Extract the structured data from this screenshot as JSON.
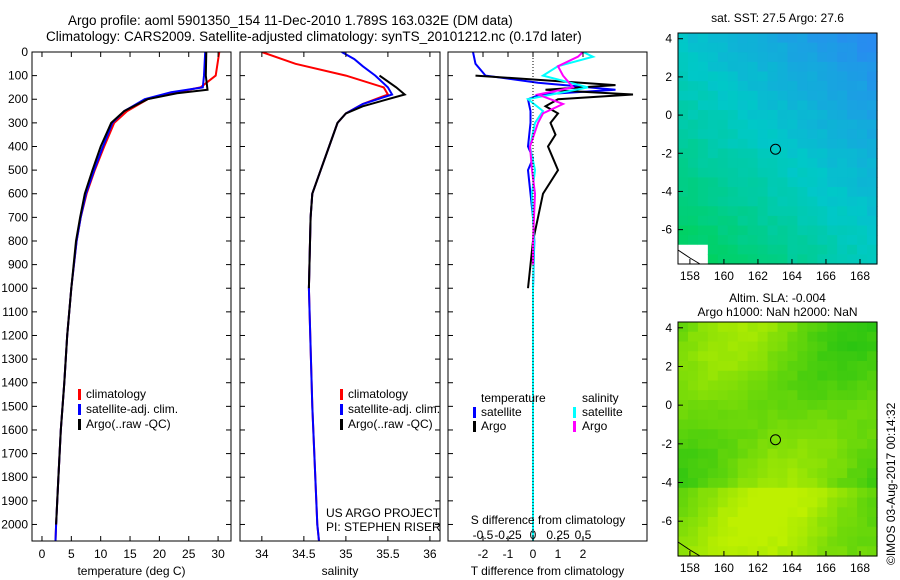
{
  "title_line1": "Argo profile: aoml 5901350_154 11-Dec-2010 1.789S 163.032E (DM data)",
  "title_line2": "Climatology: CARS2009. Satellite-adjusted climatology: synTS_20101212.nc (0.17d later)",
  "credit": "©IMOS 03-Aug-2017 00:14:32",
  "colors": {
    "climatology": "#ff0000",
    "satellite": "#0000ff",
    "argo": "#000000",
    "sal_satellite": "#00ffff",
    "sal_argo": "#ff00ff"
  },
  "chart_data": [
    {
      "type": "line",
      "name": "temperature-profile",
      "xlabel": "temperature (deg C)",
      "ylabel": "",
      "xlim": [
        -1.7,
        32.2
      ],
      "ylim": [
        0,
        2070
      ],
      "y_inverted": true,
      "xticks": [
        0,
        5,
        10,
        15,
        20,
        25,
        30
      ],
      "yticks": [
        0,
        100,
        200,
        300,
        400,
        500,
        600,
        700,
        800,
        900,
        1000,
        1100,
        1200,
        1300,
        1400,
        1500,
        1600,
        1700,
        1800,
        1900,
        2000
      ],
      "legend": [
        "climatology",
        "satellite-adj. clim.",
        "Argo(..raw -QC)"
      ],
      "series": [
        {
          "name": "climatology",
          "color": "#ff0000",
          "depth": [
            0,
            100,
            150,
            180,
            200,
            250,
            300,
            400,
            500,
            600,
            700,
            800,
            1000,
            1200,
            1400,
            1600,
            1800,
            2000,
            2070
          ],
          "values": [
            30.2,
            29.6,
            27,
            21,
            18,
            14.5,
            12.3,
            10.6,
            9,
            7.6,
            6.6,
            5.9,
            5,
            4.3,
            3.8,
            3.2,
            2.8,
            2.4,
            2.3
          ]
        },
        {
          "name": "satellite-adj. clim.",
          "color": "#0000ff",
          "depth": [
            0,
            100,
            150,
            170,
            200,
            250,
            300,
            400,
            500,
            600,
            700,
            800,
            1000,
            1200,
            1400,
            1600,
            1800,
            2000,
            2070
          ],
          "values": [
            27.8,
            27.6,
            27.4,
            22,
            17.5,
            14,
            12,
            10.4,
            8.9,
            7.5,
            6.6,
            5.9,
            5,
            4.3,
            3.8,
            3.2,
            2.8,
            2.4,
            2.3
          ]
        },
        {
          "name": "Argo(..raw -QC)",
          "color": "#000000",
          "depth": [
            0,
            100,
            160,
            175,
            200,
            250,
            300,
            400,
            500,
            600,
            700,
            800,
            1000,
            1200,
            1400,
            1600,
            1800,
            2000
          ],
          "values": [
            28,
            27.9,
            28.2,
            23,
            18,
            14,
            11.8,
            10,
            8.6,
            7.3,
            6.5,
            5.8,
            5,
            4.3,
            3.8,
            3.2,
            2.8,
            2.4
          ]
        }
      ]
    },
    {
      "type": "line",
      "name": "salinity-profile",
      "xlabel": "salinity",
      "xlim": [
        33.74,
        36.12
      ],
      "ylim": [
        0,
        2070
      ],
      "y_inverted": true,
      "xticks": [
        34,
        34.5,
        35,
        35.5,
        36
      ],
      "legend": [
        "climatology",
        "satellite-adj. clim.",
        "Argo(..raw -QC)"
      ],
      "annotation": [
        "US ARGO PROJECT",
        "PI: STEPHEN RISER"
      ],
      "series": [
        {
          "name": "climatology",
          "color": "#ff0000",
          "depth": [
            0,
            50,
            100,
            150,
            180,
            220,
            260,
            300,
            400,
            500,
            600,
            700,
            1000,
            1500,
            2000,
            2070
          ],
          "values": [
            34.0,
            34.4,
            35.0,
            35.45,
            35.5,
            35.2,
            35.0,
            34.9,
            34.8,
            34.7,
            34.6,
            34.58,
            34.56,
            34.6,
            34.66,
            34.68
          ]
        },
        {
          "name": "satellite-adj. clim.",
          "color": "#0000ff",
          "depth": [
            0,
            30,
            60,
            100,
            150,
            180,
            220,
            260,
            300,
            400,
            500,
            600,
            700,
            1000,
            1500,
            2000,
            2070
          ],
          "values": [
            34.95,
            35.1,
            35.2,
            35.35,
            35.5,
            35.55,
            35.2,
            35.0,
            34.9,
            34.8,
            34.7,
            34.6,
            34.58,
            34.56,
            34.6,
            34.66,
            34.68
          ]
        },
        {
          "name": "Argo(..raw -QC)",
          "color": "#000000",
          "depth": [
            100,
            150,
            180,
            200,
            230,
            260,
            300,
            400,
            500,
            600,
            700,
            1000
          ],
          "values": [
            35.4,
            35.6,
            35.7,
            35.5,
            35.2,
            35.0,
            34.9,
            34.8,
            34.7,
            34.6,
            34.58,
            34.56
          ]
        }
      ]
    },
    {
      "type": "line",
      "name": "difference-profile",
      "xlabel": "T difference from climatology",
      "x2label": "S difference from climatology",
      "xlim": [
        -3.4,
        4.56
      ],
      "xticks": [
        -2,
        -1,
        0,
        1,
        2
      ],
      "x2ticks": [
        -0.5,
        -0.25,
        0,
        0.25,
        0.5
      ],
      "ylim": [
        0,
        2070
      ],
      "y_inverted": true,
      "legend": {
        "temperature": [
          "satellite",
          "Argo"
        ],
        "salinity": [
          "satellite",
          "Argo"
        ],
        "temperature_header": "temperature",
        "salinity_header": "salinity"
      },
      "series": [
        {
          "name": "T satellite",
          "color": "#0000ff",
          "units": "T",
          "depth": [
            0,
            50,
            100,
            130,
            160,
            180,
            200,
            250,
            300,
            400,
            450,
            500,
            600,
            700,
            800,
            1000,
            1500,
            2000,
            2070
          ],
          "values": [
            -2.4,
            -2.3,
            -1.9,
            0.2,
            3.3,
            0.3,
            -0.2,
            -0.1,
            -0.1,
            -0.2,
            0,
            -0.2,
            -0.1,
            0,
            0.05,
            0,
            0,
            0,
            0
          ]
        },
        {
          "name": "T Argo",
          "color": "#000000",
          "units": "T",
          "depth": [
            100,
            140,
            160,
            180,
            200,
            230,
            260,
            300,
            350,
            400,
            450,
            500,
            600,
            700,
            800,
            900,
            1000
          ],
          "values": [
            -2.3,
            3.3,
            0.5,
            4,
            1,
            0.5,
            1,
            0.7,
            0.9,
            0.6,
            0.8,
            1,
            0.4,
            0.2,
            0,
            -0.1,
            -0.2
          ]
        },
        {
          "name": "S satellite",
          "color": "#00ffff",
          "units": "S",
          "depth": [
            0,
            20,
            60,
            100,
            150,
            200,
            250,
            300,
            400,
            500,
            600,
            700,
            800,
            1000,
            1500,
            2000,
            2070
          ],
          "values": [
            0.5,
            0.6,
            0.25,
            0.1,
            0.55,
            -0.05,
            0.1,
            0.02,
            -0.03,
            0.02,
            -0.01,
            0,
            0.01,
            0,
            0,
            0,
            0
          ]
        },
        {
          "name": "S Argo",
          "color": "#ff00ff",
          "units": "S",
          "depth": [
            0,
            20,
            60,
            100,
            150,
            180,
            220,
            260,
            300,
            400,
            500,
            600,
            700,
            800,
            900
          ],
          "values": [
            0.5,
            0.45,
            0.25,
            0.3,
            0.4,
            0.05,
            0.3,
            0.1,
            0.05,
            -0.03,
            -0.01,
            0.02,
            0.01,
            0,
            0
          ]
        }
      ]
    },
    {
      "type": "heatmap",
      "name": "sst-map",
      "title": "sat. SST: 27.5 Argo: 27.6",
      "xlim": [
        157.3,
        169
      ],
      "ylim": [
        -7.8,
        4.3
      ],
      "xticks": [
        158,
        160,
        162,
        164,
        166,
        168
      ],
      "yticks": [
        -6,
        -4,
        -2,
        0,
        2,
        4
      ],
      "marker": {
        "lon": 163.032,
        "lat": -1.789
      }
    },
    {
      "type": "heatmap",
      "name": "sla-map",
      "title": "Altim. SLA: -0.004",
      "subtitle": "Argo h1000: NaN h2000: NaN",
      "xlim": [
        157.3,
        169
      ],
      "ylim": [
        -7.8,
        4.3
      ],
      "xticks": [
        158,
        160,
        162,
        164,
        166,
        168
      ],
      "yticks": [
        -6,
        -4,
        -2,
        0,
        2,
        4
      ],
      "marker": {
        "lon": 163.032,
        "lat": -1.789
      }
    }
  ]
}
